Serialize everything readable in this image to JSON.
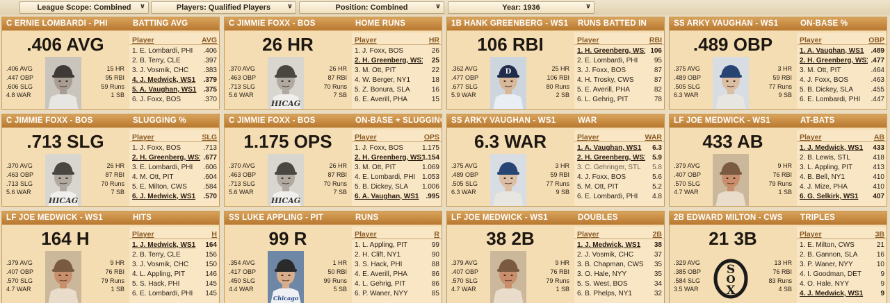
{
  "filters": [
    {
      "label": "League Scope: Combined"
    },
    {
      "label": "Players: Qualified Players"
    },
    {
      "label": "Position: Combined"
    },
    {
      "label": "Year: 1936"
    }
  ],
  "colors": {
    "header": "#c68a3f",
    "card": "#f4ddb2",
    "accent_text": "#8a5a24"
  },
  "cards": [
    {
      "player": "C ERNIE LOMBARDI - PHI",
      "title": "BATTING AVG",
      "big": ".406 AVG",
      "photo": "player-photo-portrait-icon",
      "left": [
        ".406 AVG",
        ".447 OBP",
        ".606 SLG",
        "4.8 WAR"
      ],
      "right": [
        "15 HR",
        "95 RBI",
        "59 Runs",
        "1 SB"
      ],
      "col1": "Player",
      "col2": "AVG",
      "rows": [
        {
          "name": "1. E. Lombardi, PHI",
          "value": ".406"
        },
        {
          "name": "2. B. Terry, CLE",
          "value": ".397"
        },
        {
          "name": "3. J. Vosmik, CHC",
          "value": ".383"
        },
        {
          "name": "4. J. Medwick, WS1",
          "value": ".379",
          "hl": true
        },
        {
          "name": "5. A. Vaughan, WS1",
          "value": ".375",
          "hl": true
        },
        {
          "name": "6. J. Foxx, BOS",
          "value": ".370"
        }
      ]
    },
    {
      "player": "C JIMMIE FOXX - BOS",
      "title": "HOME RUNS",
      "big": "26 HR",
      "photo": "player-photo-chicago-uniform-icon",
      "left": [
        ".370 AVG",
        ".463 OBP",
        ".713 SLG",
        "5.6 WAR"
      ],
      "right": [
        "26 HR",
        "87 RBI",
        "70 Runs",
        "7 SB"
      ],
      "col1": "Player",
      "col2": "HR",
      "rows": [
        {
          "name": "1. J. Foxx, BOS",
          "value": "26"
        },
        {
          "name": "2. H. Greenberg, WS1",
          "value": "25",
          "hl": true
        },
        {
          "name": "3. M. Ott, PIT",
          "value": "22"
        },
        {
          "name": "4. W. Berger, NY1",
          "value": "18"
        },
        {
          "name": "5. Z. Bonura, SLA",
          "value": "16"
        },
        {
          "name": "6. E. Averill, PHA",
          "value": "15"
        }
      ]
    },
    {
      "player": "1B HANK GREENBERG - WS1",
      "title": "RUNS BATTED IN",
      "big": "106 RBI",
      "photo": "player-photo-detroit-cap-icon",
      "left": [
        ".362 AVG",
        ".477 OBP",
        ".677 SLG",
        "5.9 WAR"
      ],
      "right": [
        "25 HR",
        "106 RBI",
        "80 Runs",
        "2 SB"
      ],
      "col1": "Player",
      "col2": "RBI",
      "rows": [
        {
          "name": "1. H. Greenberg, WS1",
          "value": "106",
          "hl": true
        },
        {
          "name": "2. E. Lombardi, PHI",
          "value": "95"
        },
        {
          "name": "3. J. Foxx, BOS",
          "value": "87"
        },
        {
          "name": "4. H. Trosky, CWS",
          "value": "87"
        },
        {
          "name": "5. E. Averill, PHA",
          "value": "82"
        },
        {
          "name": "6. L. Gehrig, PIT",
          "value": "78"
        }
      ]
    },
    {
      "player": "SS ARKY VAUGHAN - WS1",
      "title": "ON-BASE %",
      "big": ".489 OBP",
      "photo": "player-photo-blue-cap-icon",
      "left": [
        ".375 AVG",
        ".489 OBP",
        ".505 SLG",
        "6.3 WAR"
      ],
      "right": [
        "3 HR",
        "59 RBI",
        "77 Runs",
        "9 SB"
      ],
      "col1": "Player",
      "col2": "OBP",
      "rows": [
        {
          "name": "1. A. Vaughan, WS1",
          "value": ".489",
          "hl": true
        },
        {
          "name": "2. H. Greenberg, WS1",
          "value": ".477",
          "hl": true
        },
        {
          "name": "3. M. Ott, PIT",
          "value": ".464"
        },
        {
          "name": "4. J. Foxx, BOS",
          "value": ".463"
        },
        {
          "name": "5. B. Dickey, SLA",
          "value": ".455"
        },
        {
          "name": "6. E. Lombardi, PHI",
          "value": ".447"
        }
      ]
    },
    {
      "player": "C JIMMIE FOXX - BOS",
      "title": "SLUGGING %",
      "big": ".713 SLG",
      "photo": "player-photo-chicago-uniform-icon",
      "left": [
        ".370 AVG",
        ".463 OBP",
        ".713 SLG",
        "5.6 WAR"
      ],
      "right": [
        "26 HR",
        "87 RBI",
        "70 Runs",
        "7 SB"
      ],
      "col1": "Player",
      "col2": "SLG",
      "rows": [
        {
          "name": "1. J. Foxx, BOS",
          "value": ".713"
        },
        {
          "name": "2. H. Greenberg, WS1",
          "value": ".677",
          "hl": true
        },
        {
          "name": "3. E. Lombardi, PHI",
          "value": ".606"
        },
        {
          "name": "4. M. Ott, PIT",
          "value": ".604"
        },
        {
          "name": "5. E. Milton, CWS",
          "value": ".584"
        },
        {
          "name": "6. J. Medwick, WS1",
          "value": ".570",
          "hl": true
        }
      ]
    },
    {
      "player": "C JIMMIE FOXX - BOS",
      "title": "ON-BASE + SLUGGING",
      "big": "1.175 OPS",
      "photo": "player-photo-chicago-uniform-icon",
      "left": [
        ".370 AVG",
        ".463 OBP",
        ".713 SLG",
        "5.6 WAR"
      ],
      "right": [
        "26 HR",
        "87 RBI",
        "70 Runs",
        "7 SB"
      ],
      "col1": "Player",
      "col2": "OPS",
      "rows": [
        {
          "name": "1. J. Foxx, BOS",
          "value": "1.175"
        },
        {
          "name": "2. H. Greenberg, WS1",
          "value": "1.154",
          "hl": true
        },
        {
          "name": "3. M. Ott, PIT",
          "value": "1.069"
        },
        {
          "name": "4. E. Lombardi, PHI",
          "value": "1.053"
        },
        {
          "name": "5. B. Dickey, SLA",
          "value": "1.006"
        },
        {
          "name": "6. A. Vaughan, WS1",
          "value": ".995",
          "hl": true
        }
      ]
    },
    {
      "player": "SS ARKY VAUGHAN - WS1",
      "title": "WAR",
      "big": "6.3 WAR",
      "photo": "player-photo-blue-cap-icon",
      "left": [
        ".375 AVG",
        ".489 OBP",
        ".505 SLG",
        "6.3 WAR"
      ],
      "right": [
        "3 HR",
        "59 RBI",
        "77 Runs",
        "9 SB"
      ],
      "col1": "Player",
      "col2": "WAR",
      "rows": [
        {
          "name": "1. A. Vaughan, WS1",
          "value": "6.3",
          "hl": true
        },
        {
          "name": "2. H. Greenberg, WS1",
          "value": "5.9",
          "hl": true
        },
        {
          "name": "3. C. Gehringer, STL",
          "value": "5.8",
          "dim": true
        },
        {
          "name": "4. J. Foxx, BOS",
          "value": "5.6"
        },
        {
          "name": "5. M. Ott, PIT",
          "value": "5.2"
        },
        {
          "name": "6. E. Lombardi, PHI",
          "value": "4.8"
        }
      ]
    },
    {
      "player": "LF JOE MEDWICK - WS1",
      "title": "AT-BATS",
      "big": "433 AB",
      "photo": "player-photo-vintage-cap-icon",
      "left": [
        ".379 AVG",
        ".407 OBP",
        ".570 SLG",
        "4.7 WAR"
      ],
      "right": [
        "9 HR",
        "76 RBI",
        "79 Runs",
        "1 SB"
      ],
      "col1": "Player",
      "col2": "AB",
      "rows": [
        {
          "name": "1. J. Medwick, WS1",
          "value": "433",
          "hl": true
        },
        {
          "name": "2. B. Lewis, STL",
          "value": "418"
        },
        {
          "name": "3. L. Appling, PIT",
          "value": "413"
        },
        {
          "name": "4. B. Bell, NY1",
          "value": "410"
        },
        {
          "name": "4. J. Mize, PHA",
          "value": "410"
        },
        {
          "name": "6. G. Selkirk, WS1",
          "value": "407",
          "hl": true
        }
      ]
    },
    {
      "player": "LF JOE MEDWICK - WS1",
      "title": "HITS",
      "big": "164 H",
      "photo": "player-photo-vintage-cap-icon",
      "left": [
        ".379 AVG",
        ".407 OBP",
        ".570 SLG",
        "4.7 WAR"
      ],
      "right": [
        "9 HR",
        "76 RBI",
        "79 Runs",
        "1 SB"
      ],
      "col1": "Player",
      "col2": "H",
      "rows": [
        {
          "name": "1. J. Medwick, WS1",
          "value": "164",
          "hl": true
        },
        {
          "name": "2. B. Terry, CLE",
          "value": "156"
        },
        {
          "name": "3. J. Vosmik, CHC",
          "value": "150"
        },
        {
          "name": "4. L. Appling, PIT",
          "value": "146"
        },
        {
          "name": "5. S. Hack, PHI",
          "value": "145"
        },
        {
          "name": "6. E. Lombardi, PHI",
          "value": "145"
        }
      ]
    },
    {
      "player": "SS LUKE APPLING - PIT",
      "title": "RUNS",
      "big": "99 R",
      "photo": "player-photo-modern-uniform-icon",
      "left": [
        ".354 AVG",
        ".417 OBP",
        ".450 SLG",
        "4.4 WAR"
      ],
      "right": [
        "1 HR",
        "50 RBI",
        "99 Runs",
        "5 SB"
      ],
      "col1": "Player",
      "col2": "R",
      "rows": [
        {
          "name": "1. L. Appling, PIT",
          "value": "99"
        },
        {
          "name": "2. H. Clift, NY1",
          "value": "90"
        },
        {
          "name": "3. S. Hack, PHI",
          "value": "88"
        },
        {
          "name": "4. E. Averill, PHA",
          "value": "86"
        },
        {
          "name": "4. L. Gehrig, PIT",
          "value": "86"
        },
        {
          "name": "6. P. Waner, NYY",
          "value": "85"
        }
      ]
    },
    {
      "player": "LF JOE MEDWICK - WS1",
      "title": "DOUBLES",
      "big": "38 2B",
      "photo": "player-photo-vintage-cap-icon",
      "left": [
        ".379 AVG",
        ".407 OBP",
        ".570 SLG",
        "4.7 WAR"
      ],
      "right": [
        "9 HR",
        "76 RBI",
        "79 Runs",
        "1 SB"
      ],
      "col1": "Player",
      "col2": "2B",
      "rows": [
        {
          "name": "1. J. Medwick, WS1",
          "value": "38",
          "hl": true
        },
        {
          "name": "2. J. Vosmik, CHC",
          "value": "37"
        },
        {
          "name": "3. B. Chapman, CWS",
          "value": "35"
        },
        {
          "name": "3. O. Hale, NYY",
          "value": "35"
        },
        {
          "name": "5. S. West, BOS",
          "value": "34"
        },
        {
          "name": "6. B. Phelps, NY1",
          "value": "32"
        }
      ]
    },
    {
      "player": "2B EDWARD MILTON - CWS",
      "title": "TRIPLES",
      "big": "21 3B",
      "photo": "team-logo-sox-icon",
      "left": [
        ".329 AVG",
        ".385 OBP",
        ".584 SLG",
        "3.5 WAR"
      ],
      "right": [
        "13 HR",
        "76 RBI",
        "83 Runs",
        "4 SB"
      ],
      "col1": "Player",
      "col2": "3B",
      "rows": [
        {
          "name": "1. E. Milton, CWS",
          "value": "21"
        },
        {
          "name": "2. B. Gannon, SLA",
          "value": "16"
        },
        {
          "name": "3. P. Waner, NYY",
          "value": "10"
        },
        {
          "name": "4. I. Goodman, DET",
          "value": "9"
        },
        {
          "name": "4. O. Hale, NYY",
          "value": "9"
        },
        {
          "name": "4. J. Medwick, WS1",
          "value": "9",
          "hl": true
        }
      ]
    }
  ]
}
